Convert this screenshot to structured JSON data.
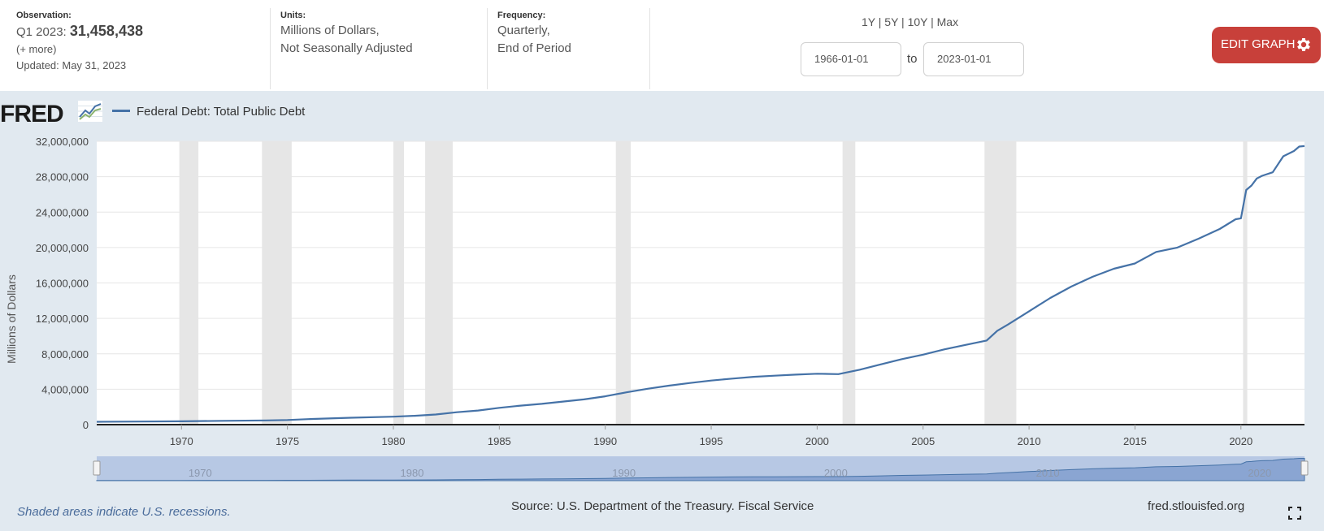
{
  "header": {
    "observation": {
      "label": "Observation:",
      "period": "Q1 2023:",
      "value": "31,458,438",
      "more": "(+ more)",
      "updated": "Updated: May 31, 2023"
    },
    "units": {
      "label": "Units:",
      "line1": "Millions of Dollars,",
      "line2": "Not Seasonally Adjusted"
    },
    "frequency": {
      "label": "Frequency:",
      "line1": "Quarterly,",
      "line2": "End of Period"
    },
    "range_links": "1Y | 5Y | 10Y | Max",
    "start_date": "1966-01-01",
    "to_label": "to",
    "end_date": "2023-01-01",
    "edit_button": "EDIT GRAPH",
    "edit_icon": "gear-icon"
  },
  "graph": {
    "logo": "FRED",
    "logo_icon": "fred-chart-icon",
    "footer_note": "Shaded areas indicate U.S. recessions.",
    "source": "Source: U.S. Department of the Treasury. Fiscal Service",
    "site": "fred.stlouisfed.org",
    "fullscreen_icon": "fullscreen-icon"
  },
  "colors": {
    "line": "#4572a7",
    "background": "#e1e9f0",
    "recession": "#e6e6e6",
    "edit_button": "#c8403a"
  },
  "chart_data": {
    "type": "line",
    "title": "",
    "ylabel": "Millions of Dollars",
    "xlabel": "",
    "xlim": [
      1966.0,
      2023.0
    ],
    "ylim": [
      0,
      32000000
    ],
    "yticks": [
      0,
      4000000,
      8000000,
      12000000,
      16000000,
      20000000,
      24000000,
      28000000,
      32000000
    ],
    "ytick_labels": [
      "0",
      "4,000,000",
      "8,000,000",
      "12,000,000",
      "16,000,000",
      "20,000,000",
      "24,000,000",
      "28,000,000",
      "32,000,000"
    ],
    "xticks": [
      1970,
      1975,
      1980,
      1985,
      1990,
      1995,
      2000,
      2005,
      2010,
      2015,
      2020
    ],
    "xtick_labels": [
      "1970",
      "1975",
      "1980",
      "1985",
      "1990",
      "1995",
      "2000",
      "2005",
      "2010",
      "2015",
      "2020"
    ],
    "navigator_ticks": [
      "1970",
      "1980",
      "1990",
      "2000",
      "2010",
      "2020"
    ],
    "grid": true,
    "legend_position": "top-left",
    "recessions": [
      [
        1969.9,
        1970.8
      ],
      [
        1973.8,
        1975.2
      ],
      [
        1980.0,
        1980.5
      ],
      [
        1981.5,
        1982.8
      ],
      [
        1990.5,
        1991.2
      ],
      [
        2001.2,
        2001.8
      ],
      [
        2007.9,
        2009.4
      ],
      [
        2020.1,
        2020.3
      ]
    ],
    "series": [
      {
        "name": "Federal Debt: Total Public Debt",
        "x": [
          1966.0,
          1968.0,
          1970.0,
          1972.0,
          1974.0,
          1975.0,
          1976.0,
          1978.0,
          1980.0,
          1981.0,
          1982.0,
          1983.0,
          1984.0,
          1985.0,
          1986.0,
          1987.0,
          1988.0,
          1989.0,
          1990.0,
          1991.0,
          1992.0,
          1993.0,
          1994.0,
          1995.0,
          1996.0,
          1997.0,
          1998.0,
          1999.0,
          2000.0,
          2001.0,
          2002.0,
          2003.0,
          2004.0,
          2005.0,
          2006.0,
          2007.0,
          2008.0,
          2008.5,
          2009.0,
          2010.0,
          2011.0,
          2012.0,
          2013.0,
          2014.0,
          2015.0,
          2016.0,
          2017.0,
          2018.0,
          2019.0,
          2019.75,
          2020.0,
          2020.25,
          2020.5,
          2020.75,
          2021.0,
          2021.5,
          2022.0,
          2022.5,
          2022.75,
          2023.0
        ],
        "values": [
          320000,
          345000,
          380000,
          430000,
          480000,
          520000,
          620000,
          780000,
          900000,
          1000000,
          1150000,
          1400000,
          1600000,
          1900000,
          2150000,
          2350000,
          2600000,
          2850000,
          3200000,
          3650000,
          4050000,
          4400000,
          4700000,
          4980000,
          5200000,
          5400000,
          5530000,
          5650000,
          5750000,
          5700000,
          6200000,
          6800000,
          7400000,
          7900000,
          8500000,
          9000000,
          9500000,
          10600000,
          11300000,
          12800000,
          14300000,
          15600000,
          16700000,
          17600000,
          18200000,
          19500000,
          20000000,
          21000000,
          22100000,
          23200000,
          23300000,
          26500000,
          27000000,
          27800000,
          28100000,
          28500000,
          30300000,
          30900000,
          31400000,
          31458438
        ]
      }
    ]
  }
}
